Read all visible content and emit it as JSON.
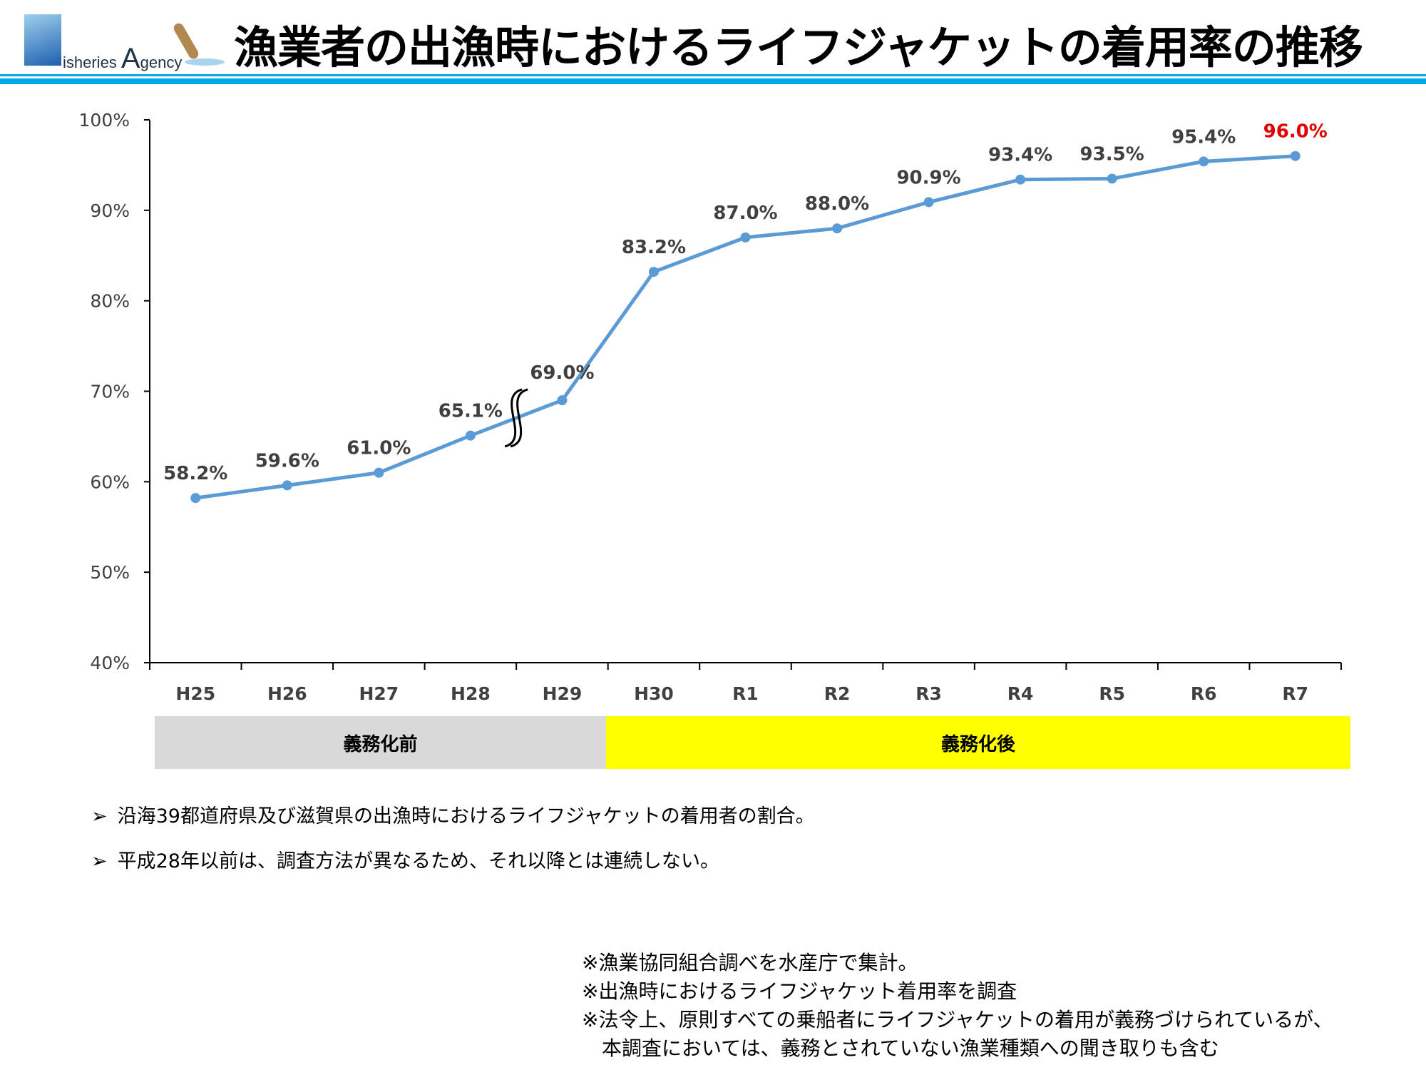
{
  "header": {
    "logo_text": "Fisheries Agency",
    "title": "漁業者の出漁時におけるライフジャケットの着用率の推移",
    "accent": "#00a9e6"
  },
  "chart_data": {
    "type": "line",
    "categories": [
      "H25",
      "H26",
      "H27",
      "H28",
      "H29",
      "H30",
      "R1",
      "R2",
      "R3",
      "R4",
      "R5",
      "R6",
      "R7"
    ],
    "values": [
      58.2,
      59.6,
      61.0,
      65.1,
      69.0,
      83.2,
      87.0,
      88.0,
      90.9,
      93.4,
      93.5,
      95.4,
      96.0
    ],
    "data_labels": [
      "58.2%",
      "59.6%",
      "61.0%",
      "65.1%",
      "69.0%",
      "83.2%",
      "87.0%",
      "88.0%",
      "90.9%",
      "93.4%",
      "93.5%",
      "95.4%",
      "96.0%"
    ],
    "ylim": [
      40,
      100
    ],
    "yticks": [
      "40%",
      "50%",
      "60%",
      "70%",
      "80%",
      "90%",
      "100%"
    ],
    "grid": false,
    "series_color": "#5b9bd5",
    "highlight_color": "#e00000",
    "break_between": [
      "H28",
      "H29"
    ],
    "bands": [
      {
        "label": "義務化前",
        "color": "#d9d9d9",
        "from": "H25",
        "to": "H29"
      },
      {
        "label": "義務化後",
        "color": "#ffff00",
        "from": "H30",
        "to": "R7"
      }
    ]
  },
  "bullets": [
    "沿海39都道府県及び滋賀県の出漁時におけるライフジャケットの着用者の割合。",
    "平成28年以前は、調査方法が異なるため、それ以降とは連続しない。"
  ],
  "bullet_marker": "➢",
  "notes": [
    "※漁業協同組合調べを水産庁で集計。",
    "※出漁時におけるライフジャケット着用率を調査",
    "※法令上、原則すべての乗船者にライフジャケットの着用が義務づけられているが、",
    "　本調査においては、義務とされていない漁業種類への聞き取りも含む"
  ]
}
